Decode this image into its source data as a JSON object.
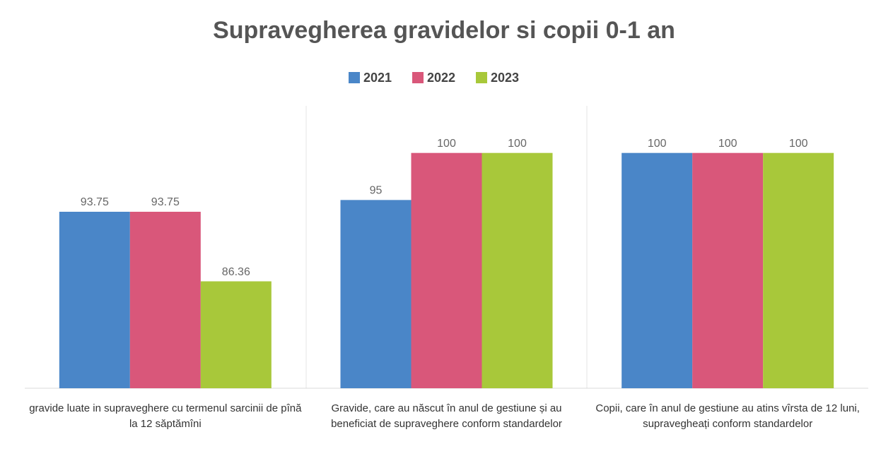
{
  "chart_data": {
    "type": "bar",
    "title": "Supravegherea gravidelor si copii 0-1 an",
    "categories": [
      "gravide luate  in supraveghere cu termenul sarcinii de pînă la 12 săptămîni",
      "Gravide, care au născut în anul de gestiune și au  beneficiat de supraveghere conform standardelor",
      "Copii, care în anul de gestiune au atins vîrsta de 12 luni, supravegheați conform standardelor"
    ],
    "series": [
      {
        "name": "2021",
        "color": "#4a86c8",
        "values": [
          93.75,
          95,
          100
        ]
      },
      {
        "name": "2022",
        "color": "#d9577a",
        "values": [
          93.75,
          100,
          100
        ]
      },
      {
        "name": "2023",
        "color": "#a8c83a",
        "values": [
          86.36,
          100,
          100
        ]
      }
    ],
    "ylim": [
      75,
      105
    ],
    "legend": "top"
  }
}
